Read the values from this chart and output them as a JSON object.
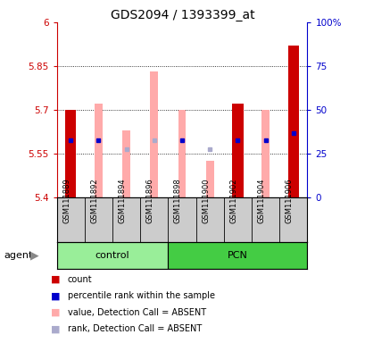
{
  "title": "GDS2094 / 1393399_at",
  "samples": [
    "GSM111889",
    "GSM111892",
    "GSM111894",
    "GSM111896",
    "GSM111898",
    "GSM111900",
    "GSM111902",
    "GSM111904",
    "GSM111906"
  ],
  "groups": [
    "control",
    "control",
    "control",
    "control",
    "PCN",
    "PCN",
    "PCN",
    "PCN",
    "PCN"
  ],
  "ylim_left": [
    5.4,
    6.0
  ],
  "ylim_right": [
    0,
    100
  ],
  "yticks_left": [
    5.4,
    5.55,
    5.7,
    5.85,
    6.0
  ],
  "yticks_right": [
    0,
    25,
    50,
    75,
    100
  ],
  "ytick_labels_left": [
    "5.4",
    "5.55",
    "5.7",
    "5.85",
    "6"
  ],
  "ytick_labels_right": [
    "0",
    "25",
    "50",
    "75",
    "100%"
  ],
  "red_bar_heights": [
    5.7,
    null,
    null,
    null,
    null,
    null,
    5.72,
    null,
    5.92
  ],
  "pink_bar_tops": [
    null,
    5.72,
    5.63,
    5.83,
    5.7,
    5.525,
    null,
    5.7,
    null
  ],
  "blue_square_y": [
    5.595,
    5.595,
    null,
    null,
    5.595,
    null,
    5.595,
    5.595,
    5.62
  ],
  "blue_sq_absent_y": [
    null,
    null,
    5.565,
    5.595,
    null,
    5.565,
    null,
    null,
    null
  ],
  "left_axis_color": "#cc0000",
  "right_axis_color": "#0000cc",
  "red_bar_color": "#cc0000",
  "pink_bar_color": "#ffaaaa",
  "blue_sq_color": "#0000cc",
  "blue_sq_absent_color": "#aaaacc",
  "bar_bottom": 5.4,
  "control_group_color": "#99ee99",
  "pcn_group_color": "#44cc44",
  "sample_label_bg": "#cccccc",
  "red_bar_width": 0.4,
  "pink_bar_width": 0.28,
  "legend_labels": [
    "count",
    "percentile rank within the sample",
    "value, Detection Call = ABSENT",
    "rank, Detection Call = ABSENT"
  ],
  "legend_colors": [
    "#cc0000",
    "#0000cc",
    "#ffaaaa",
    "#aaaacc"
  ]
}
